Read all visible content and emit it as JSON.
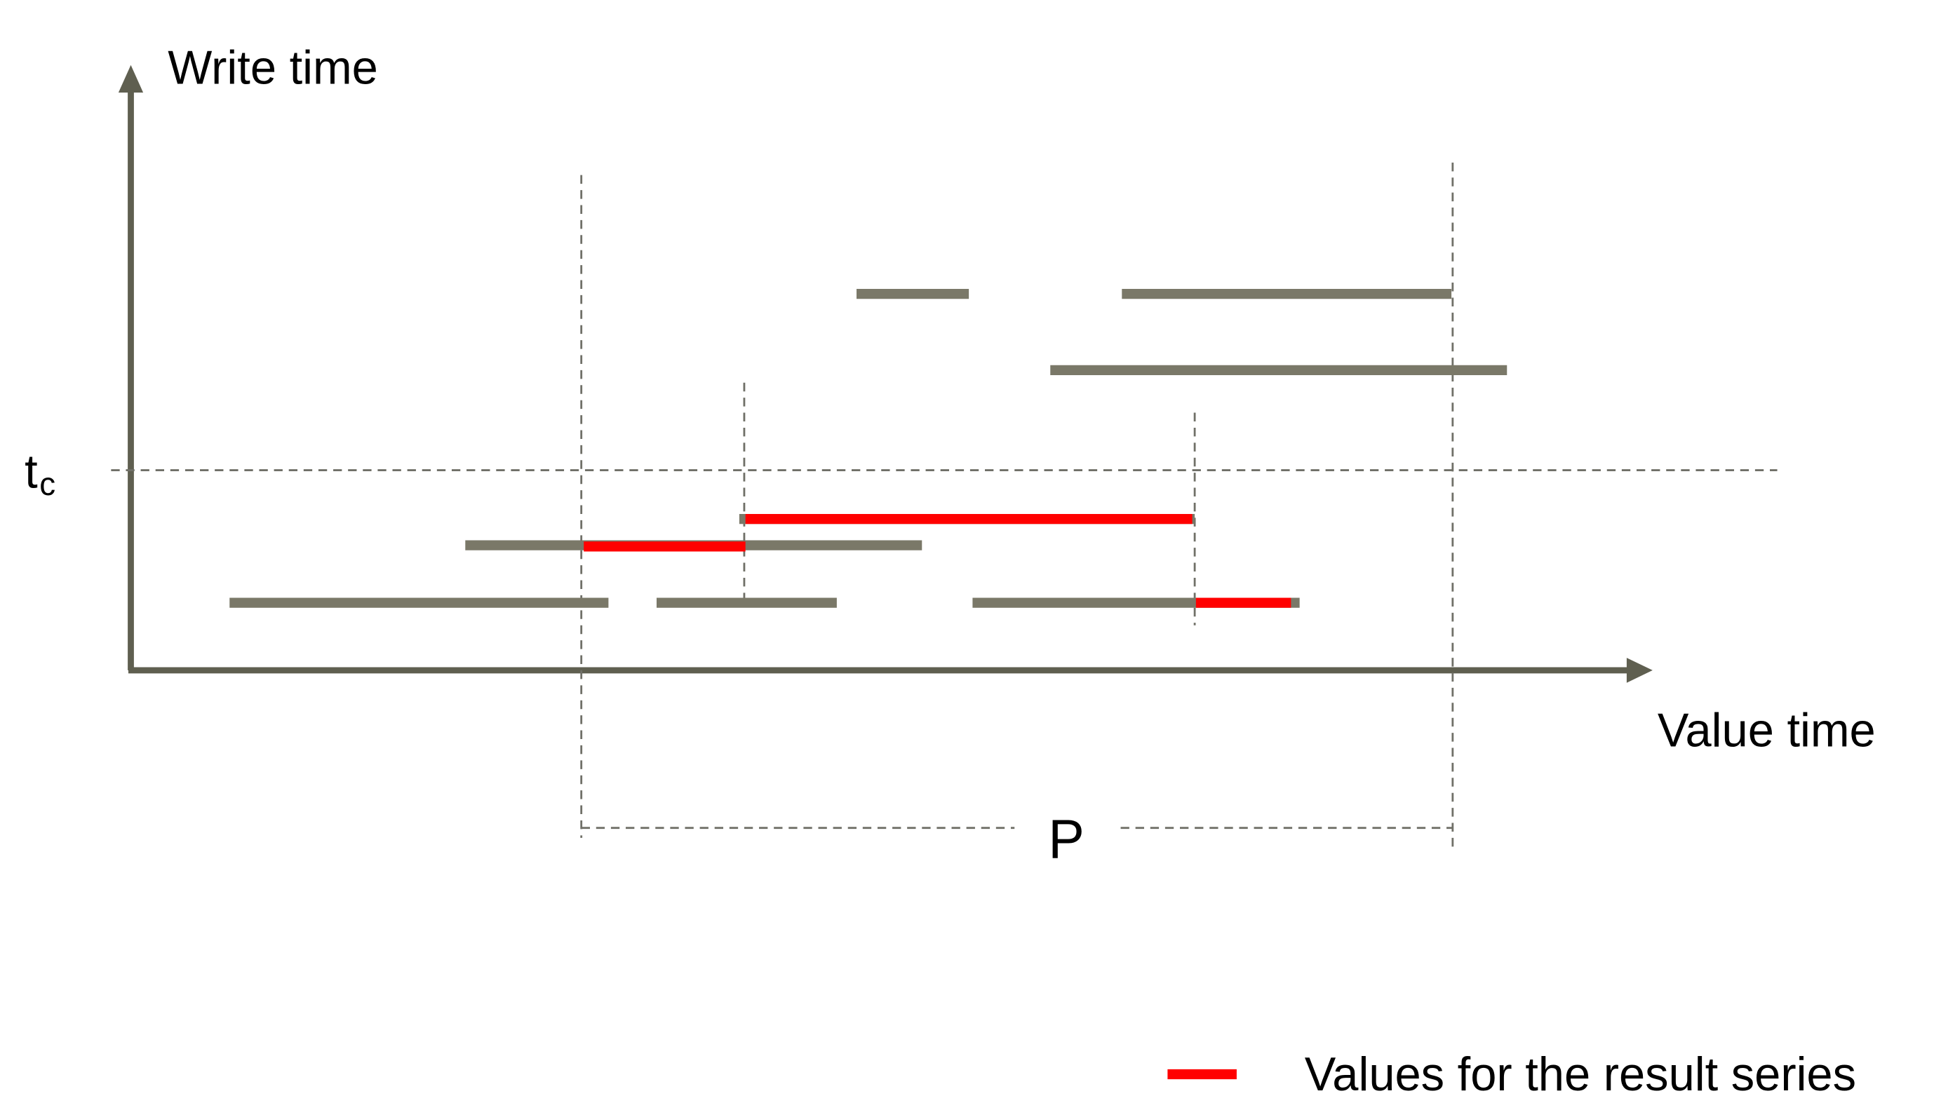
{
  "labels": {
    "y_axis": "Write time",
    "x_axis": "Value time",
    "threshold": "t",
    "threshold_subscript": "c",
    "period": "P",
    "legend": "Values for the result series"
  },
  "colors": {
    "axis": "#5f5f50",
    "segment": "#7a7868",
    "highlight": "#ff0000",
    "guide": "#707068",
    "text": "#000000"
  }
}
